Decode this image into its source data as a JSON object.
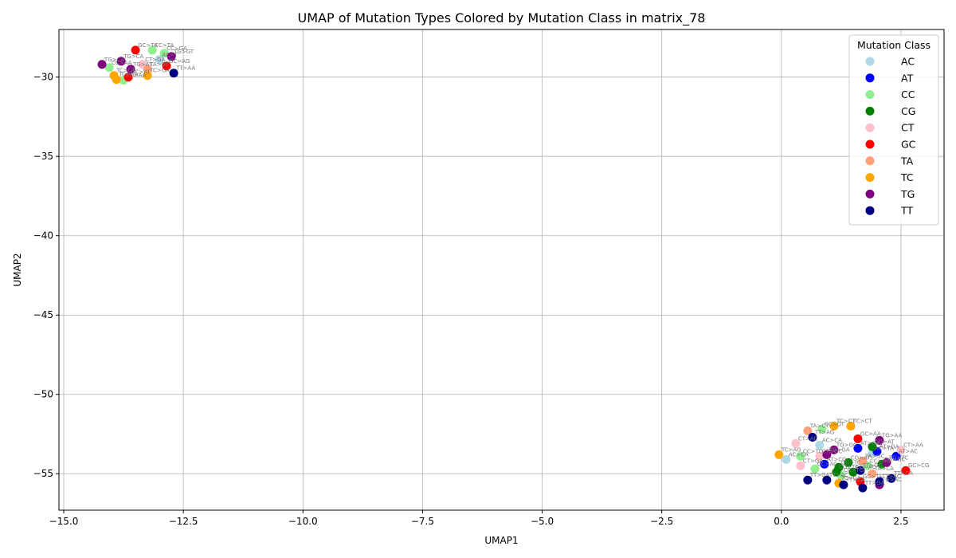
{
  "chart_data": {
    "type": "scatter",
    "title": "UMAP of Mutation Types Colored by Mutation Class in matrix_78",
    "xlabel": "UMAP1",
    "ylabel": "UMAP2",
    "xlim": [
      -15.1,
      3.4
    ],
    "ylim": [
      -57.3,
      -27.0
    ],
    "xticks": [
      -15.0,
      -12.5,
      -10.0,
      -7.5,
      -5.0,
      -2.5,
      0.0,
      2.5
    ],
    "xtick_labels": [
      "−15.0",
      "−12.5",
      "−10.0",
      "−7.5",
      "−5.0",
      "−2.5",
      "0.0",
      "2.5"
    ],
    "yticks": [
      -30,
      -35,
      -40,
      -45,
      -50,
      -55
    ],
    "ytick_labels": [
      "−30",
      "−35",
      "−40",
      "−45",
      "−50",
      "−55"
    ],
    "grid": true,
    "legend": {
      "title": "Mutation Class",
      "placement": "top-right"
    },
    "series": [
      {
        "name": "AC",
        "color": "#add8e6",
        "points": [
          {
            "x": -13.0,
            "y": -28.9,
            "label": "AC>T"
          },
          {
            "x": 0.1,
            "y": -54.1,
            "label": "AC>CA"
          },
          {
            "x": 0.8,
            "y": -53.2,
            "label": "AC>CA"
          },
          {
            "x": 1.9,
            "y": -53.7,
            "label": "AC>TA"
          }
        ]
      },
      {
        "name": "AT",
        "color": "#0000ff",
        "points": [
          {
            "x": 0.9,
            "y": -54.4,
            "label": "AT>CG"
          },
          {
            "x": 1.6,
            "y": -53.4,
            "label": "AT>CA"
          },
          {
            "x": 2.0,
            "y": -53.6,
            "label": "AT>GA"
          },
          {
            "x": 2.4,
            "y": -53.9,
            "label": "AT>AC"
          }
        ]
      },
      {
        "name": "CC",
        "color": "#90ee90",
        "points": [
          {
            "x": -13.15,
            "y": -28.3,
            "label": "CC>TA"
          },
          {
            "x": -12.9,
            "y": -28.5,
            "label": "CC>GA"
          },
          {
            "x": -14.05,
            "y": -29.4,
            "label": "CC>AA"
          },
          {
            "x": -13.75,
            "y": -30.2,
            "label": "CC>AA"
          },
          {
            "x": 0.4,
            "y": -53.9,
            "label": "CC>TG"
          },
          {
            "x": 0.85,
            "y": -52.2,
            "label": "CC>GT"
          },
          {
            "x": 1.8,
            "y": -54.5,
            "label": "CC>AG"
          },
          {
            "x": 1.25,
            "y": -55.1,
            "label": "CC>TG"
          },
          {
            "x": 0.7,
            "y": -54.7,
            "label": "CC>AC"
          }
        ]
      },
      {
        "name": "CG",
        "color": "#008000",
        "points": [
          {
            "x": 1.4,
            "y": -54.3,
            "label": "CG>AT"
          },
          {
            "x": 1.9,
            "y": -53.3,
            "label": "CG>AT"
          },
          {
            "x": 1.15,
            "y": -54.9,
            "label": "CG>TA"
          },
          {
            "x": 1.5,
            "y": -54.9,
            "label": "CG>AC"
          },
          {
            "x": 2.1,
            "y": -54.4,
            "label": "CG>GC"
          },
          {
            "x": 1.2,
            "y": -54.6,
            "label": "CG>TC"
          }
        ]
      },
      {
        "name": "CT",
        "color": "#ffc0cb",
        "points": [
          {
            "x": -13.35,
            "y": -29.2,
            "label": "CT>GA"
          },
          {
            "x": 0.3,
            "y": -53.1,
            "label": "CT>AC"
          },
          {
            "x": 0.4,
            "y": -54.5,
            "label": "CT>GA"
          },
          {
            "x": 0.8,
            "y": -53.9,
            "label": "CT>GC"
          },
          {
            "x": 2.5,
            "y": -53.5,
            "label": "CT>AA"
          }
        ]
      },
      {
        "name": "GC",
        "color": "#ff0000",
        "points": [
          {
            "x": -13.5,
            "y": -28.3,
            "label": "GC>TA"
          },
          {
            "x": -12.85,
            "y": -29.3,
            "label": "GC>AG"
          },
          {
            "x": -13.65,
            "y": -30.0,
            "label": "GC>AT"
          },
          {
            "x": 1.6,
            "y": -52.8,
            "label": "GC>AA"
          },
          {
            "x": 2.6,
            "y": -54.8,
            "label": "GC>CG"
          },
          {
            "x": 1.65,
            "y": -55.5,
            "label": "GC>TA"
          }
        ]
      },
      {
        "name": "TA",
        "color": "#ffa07a",
        "points": [
          {
            "x": -13.25,
            "y": -29.5,
            "label": "TA>GT"
          },
          {
            "x": 0.55,
            "y": -52.3,
            "label": "TA>CT"
          },
          {
            "x": 1.7,
            "y": -54.2,
            "label": "TA>GC"
          },
          {
            "x": 1.9,
            "y": -55.0,
            "label": "TA>CA"
          }
        ]
      },
      {
        "name": "TC",
        "color": "#ffa500",
        "points": [
          {
            "x": -13.95,
            "y": -29.9,
            "label": "TC>CT"
          },
          {
            "x": -13.9,
            "y": -30.15,
            "label": "TC>AA"
          },
          {
            "x": -13.25,
            "y": -29.9,
            "label": "TC>GA"
          },
          {
            "x": -0.05,
            "y": -53.8,
            "label": "TC>AG"
          },
          {
            "x": 1.1,
            "y": -52.0,
            "label": "TC>CT"
          },
          {
            "x": 1.45,
            "y": -52.0,
            "label": "TC>CT"
          },
          {
            "x": 1.2,
            "y": -55.6,
            "label": "TC>GA"
          }
        ]
      },
      {
        "name": "TG",
        "color": "#800080",
        "points": [
          {
            "x": -14.2,
            "y": -29.2,
            "label": "TG>CA"
          },
          {
            "x": -13.8,
            "y": -29.0,
            "label": "TG>CA"
          },
          {
            "x": -12.75,
            "y": -28.7,
            "label": "TG>GT"
          },
          {
            "x": -13.6,
            "y": -29.5,
            "label": "TG>AT"
          },
          {
            "x": 2.05,
            "y": -52.9,
            "label": "TG>AA"
          },
          {
            "x": 1.1,
            "y": -53.5,
            "label": "TG>GC"
          },
          {
            "x": 0.95,
            "y": -53.8,
            "label": "TG>GA"
          },
          {
            "x": 2.2,
            "y": -54.3,
            "label": "TG>TC"
          },
          {
            "x": 2.05,
            "y": -55.7,
            "label": "TG>AC"
          }
        ]
      },
      {
        "name": "TT",
        "color": "#000080",
        "points": [
          {
            "x": -12.7,
            "y": -29.75,
            "label": "TT>AA"
          },
          {
            "x": 0.65,
            "y": -52.7,
            "label": "TT>AG"
          },
          {
            "x": 1.65,
            "y": -54.8,
            "label": "TT>GC"
          },
          {
            "x": 2.3,
            "y": -55.3,
            "label": "TT>CA"
          },
          {
            "x": 0.55,
            "y": -55.4,
            "label": "TT>GA"
          },
          {
            "x": 0.95,
            "y": -55.4,
            "label": "TT>AC"
          },
          {
            "x": 1.3,
            "y": -55.7,
            "label": "TT>CA"
          },
          {
            "x": 1.7,
            "y": -55.9,
            "label": "TT>GA"
          },
          {
            "x": 2.05,
            "y": -55.5,
            "label": "TT>AC"
          }
        ]
      }
    ]
  }
}
